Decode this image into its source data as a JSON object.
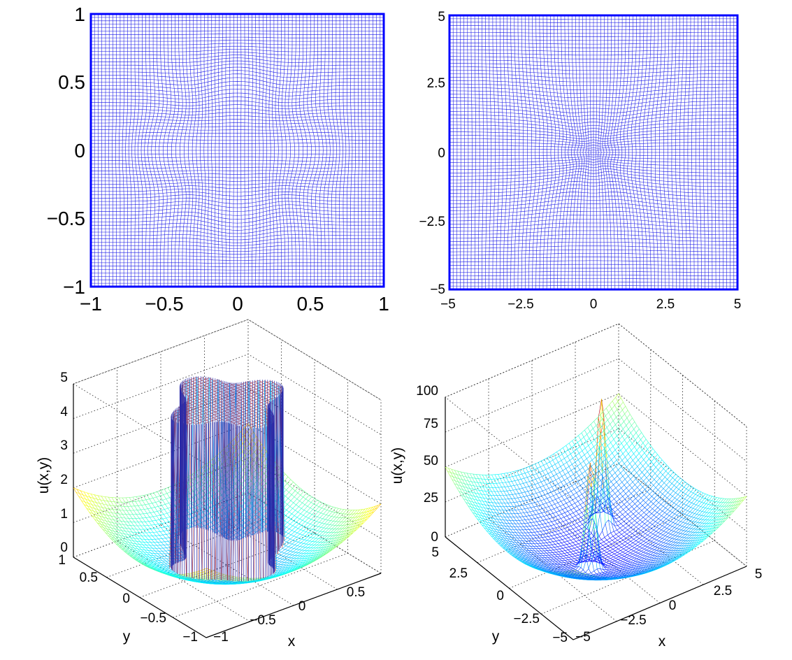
{
  "chart_data": [
    {
      "type": "mesh",
      "title": "",
      "x_ticks": [
        "−1",
        "−0.5",
        "0",
        "0.5",
        "1"
      ],
      "y_ticks": [
        "−1",
        "−0.5",
        "0",
        "0.5",
        "1"
      ],
      "xlim": [
        -1,
        1
      ],
      "ylim": [
        -1,
        1
      ],
      "grid_lines": 80,
      "deformation": {
        "kind": "four-petal",
        "amplitude": 0.04
      },
      "line_color": "#1414e6",
      "frame_color": "#0000ff"
    },
    {
      "type": "mesh",
      "title": "",
      "x_ticks": [
        "−5",
        "−2.5",
        "0",
        "2.5",
        "5"
      ],
      "y_ticks": [
        "−5",
        "−2.5",
        "0",
        "2.5",
        "5"
      ],
      "xlim": [
        -5,
        5
      ],
      "ylim": [
        -5,
        5
      ],
      "grid_lines": 80,
      "deformation": {
        "kind": "radial-concentration",
        "amplitude": 0.35
      },
      "line_color": "#1414e6",
      "frame_color": "#0000ff"
    },
    {
      "type": "surface",
      "xlabel": "x",
      "ylabel": "y",
      "zlabel": "u(x,y)",
      "x_ticks": [
        "−1",
        "−0.5",
        "0",
        "0.5"
      ],
      "y_ticks": [
        "−1",
        "−0.5",
        "0",
        "0.5",
        "1"
      ],
      "z_ticks": [
        "0",
        "1",
        "2",
        "3",
        "4",
        "5"
      ],
      "xlim": [
        -1,
        1
      ],
      "ylim": [
        -1,
        1
      ],
      "zlim": [
        0,
        5
      ],
      "base_function": "x^2 + y^2",
      "plateau_value": 4.7,
      "plateau_shape": "four-petal star, radius 0.38 to 0.6",
      "colormap": "jet"
    },
    {
      "type": "surface",
      "xlabel": "x",
      "ylabel": "y",
      "zlabel": "u(x,y)",
      "x_ticks": [
        "−5",
        "−2.5",
        "0",
        "2.5",
        "5"
      ],
      "y_ticks": [
        "−5",
        "−2.5",
        "0",
        "2.5",
        "5"
      ],
      "z_ticks": [
        "0",
        "25",
        "50",
        "75",
        "100"
      ],
      "xlim": [
        -5,
        5
      ],
      "ylim": [
        -5,
        5
      ],
      "zlim": [
        0,
        100
      ],
      "base_function": "x^2 + y^2",
      "peaks": [
        {
          "x": -1.2,
          "y": -1.2,
          "height": 80
        },
        {
          "x": 1.2,
          "y": 1.2,
          "height": 95
        }
      ],
      "colormap": "jet"
    }
  ]
}
